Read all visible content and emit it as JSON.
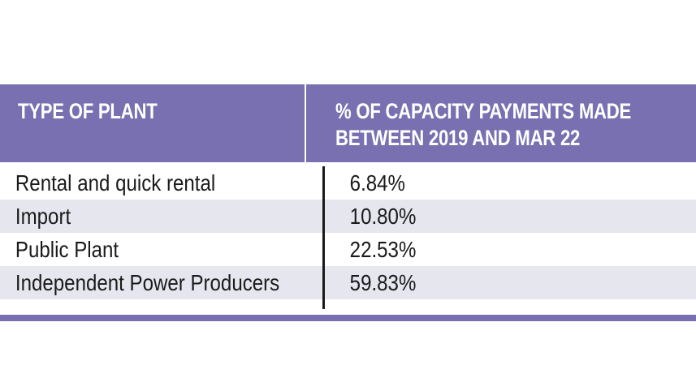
{
  "table": {
    "headers": {
      "type_of_plant": "TYPE OF PLANT",
      "capacity_line1": "% OF CAPACITY PAYMENTS MADE",
      "capacity_line2": "BETWEEN 2019 AND MAR 22"
    },
    "rows": [
      {
        "plant": "Rental and quick rental",
        "percent": "6.84%"
      },
      {
        "plant": "Import",
        "percent": "10.80%"
      },
      {
        "plant": "Public Plant",
        "percent": "22.53%"
      },
      {
        "plant": "Independent Power Producers",
        "percent": "59.83%"
      }
    ]
  },
  "colors": {
    "header_bg": "#7870b0",
    "alt_row_bg": "#e6e6ef"
  }
}
